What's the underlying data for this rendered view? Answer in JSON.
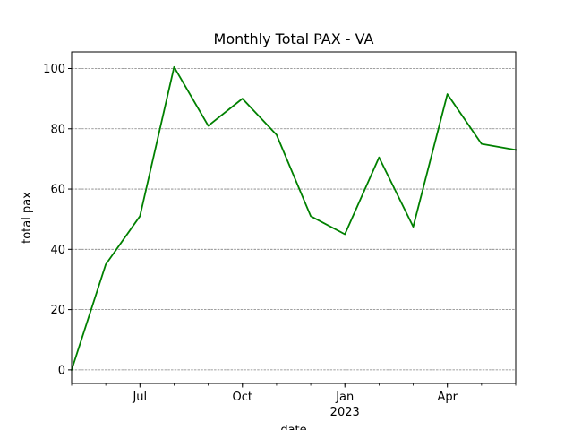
{
  "chart_data": {
    "type": "line",
    "title": "Monthly Total PAX - VA",
    "xlabel": "date",
    "ylabel": "total pax",
    "x": [
      "2022-05",
      "2022-06",
      "2022-07",
      "2022-08",
      "2022-09",
      "2022-10",
      "2022-11",
      "2022-12",
      "2023-01",
      "2023-02",
      "2023-03",
      "2023-04",
      "2023-05",
      "2023-06"
    ],
    "series": [
      {
        "values": [
          0,
          35,
          51,
          100.5,
          81,
          90,
          78,
          51,
          45,
          70.5,
          47.5,
          91.5,
          75,
          73
        ]
      }
    ],
    "ylim": [
      -4.5,
      105.5
    ],
    "yticks": [
      0,
      20,
      40,
      60,
      80,
      100
    ],
    "xticks": [
      {
        "x": "2022-07",
        "label": "Jul",
        "sublabel": ""
      },
      {
        "x": "2022-10",
        "label": "Oct",
        "sublabel": ""
      },
      {
        "x": "2023-01",
        "label": "Jan",
        "sublabel": "2023"
      },
      {
        "x": "2023-04",
        "label": "Apr",
        "sublabel": ""
      }
    ],
    "grid": "y",
    "line_color": "#008000"
  }
}
